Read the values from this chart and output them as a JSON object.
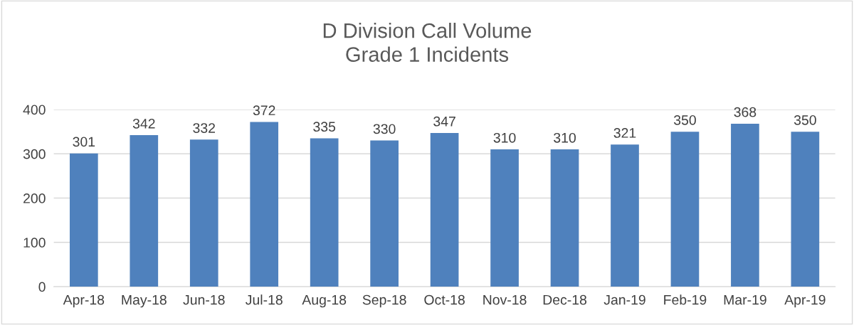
{
  "chart_data": {
    "type": "bar",
    "title": "D Division Call Volume\nGrade 1 Incidents",
    "categories": [
      "Apr-18",
      "May-18",
      "Jun-18",
      "Jul-18",
      "Aug-18",
      "Sep-18",
      "Oct-18",
      "Nov-18",
      "Dec-18",
      "Jan-19",
      "Feb-19",
      "Mar-19",
      "Apr-19"
    ],
    "values": [
      301,
      342,
      332,
      372,
      335,
      330,
      347,
      310,
      310,
      321,
      350,
      368,
      350
    ],
    "color": "#4f81bd",
    "ylim": [
      0,
      400
    ],
    "yticks": [
      0,
      100,
      200,
      300,
      400
    ],
    "grid": "y",
    "data_labels": true
  }
}
